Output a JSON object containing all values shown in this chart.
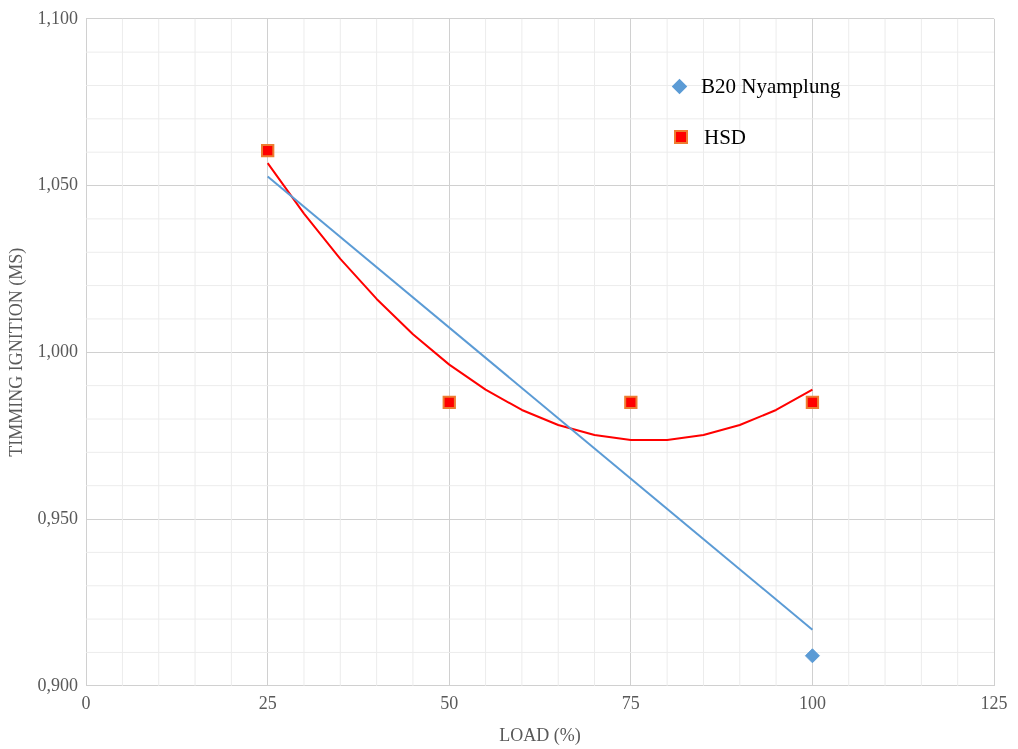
{
  "chart_data": {
    "type": "scatter",
    "xlabel": "LOAD (%)",
    "ylabel": "TIMMING IGNITION (MS)",
    "xlim": [
      0,
      125
    ],
    "xticks": [
      0,
      25,
      50,
      75,
      100,
      125
    ],
    "ylim": [
      0.9,
      1.1
    ],
    "yticks": [
      {
        "value": 0.9,
        "label": "0,900"
      },
      {
        "value": 0.95,
        "label": "0,950"
      },
      {
        "value": 1.0,
        "label": "1,000"
      },
      {
        "value": 1.05,
        "label": "1,050"
      },
      {
        "value": 1.1,
        "label": "1,100"
      }
    ],
    "grid": true,
    "legend": "top right",
    "series": [
      {
        "name": "B20 Nyamplung",
        "marker": "diamond",
        "color": "#5b9bd5",
        "x": [
          100
        ],
        "values": [
          0.909
        ]
      },
      {
        "name": "HSD",
        "marker": "square",
        "color": "#ff0000",
        "x": [
          25,
          50,
          75,
          100
        ],
        "values": [
          1.0605,
          0.985,
          0.985,
          0.985
        ]
      },
      {
        "type": "line",
        "marker": "none",
        "color": "#5b9bd5",
        "x": [
          25,
          100
        ],
        "values": [
          1.0527,
          0.9168
        ]
      },
      {
        "type": "line",
        "marker": "none",
        "color": "#ff0000",
        "x": [
          25,
          30,
          35,
          40,
          45,
          50,
          55,
          60,
          65,
          70,
          75,
          80,
          85,
          90,
          95,
          100
        ],
        "values": [
          1.0567,
          1.0416,
          1.028,
          1.016,
          1.0054,
          0.9963,
          0.9888,
          0.9827,
          0.9782,
          0.9752,
          0.9737,
          0.9737,
          0.9752,
          0.9782,
          0.9827,
          0.9888
        ]
      }
    ]
  }
}
